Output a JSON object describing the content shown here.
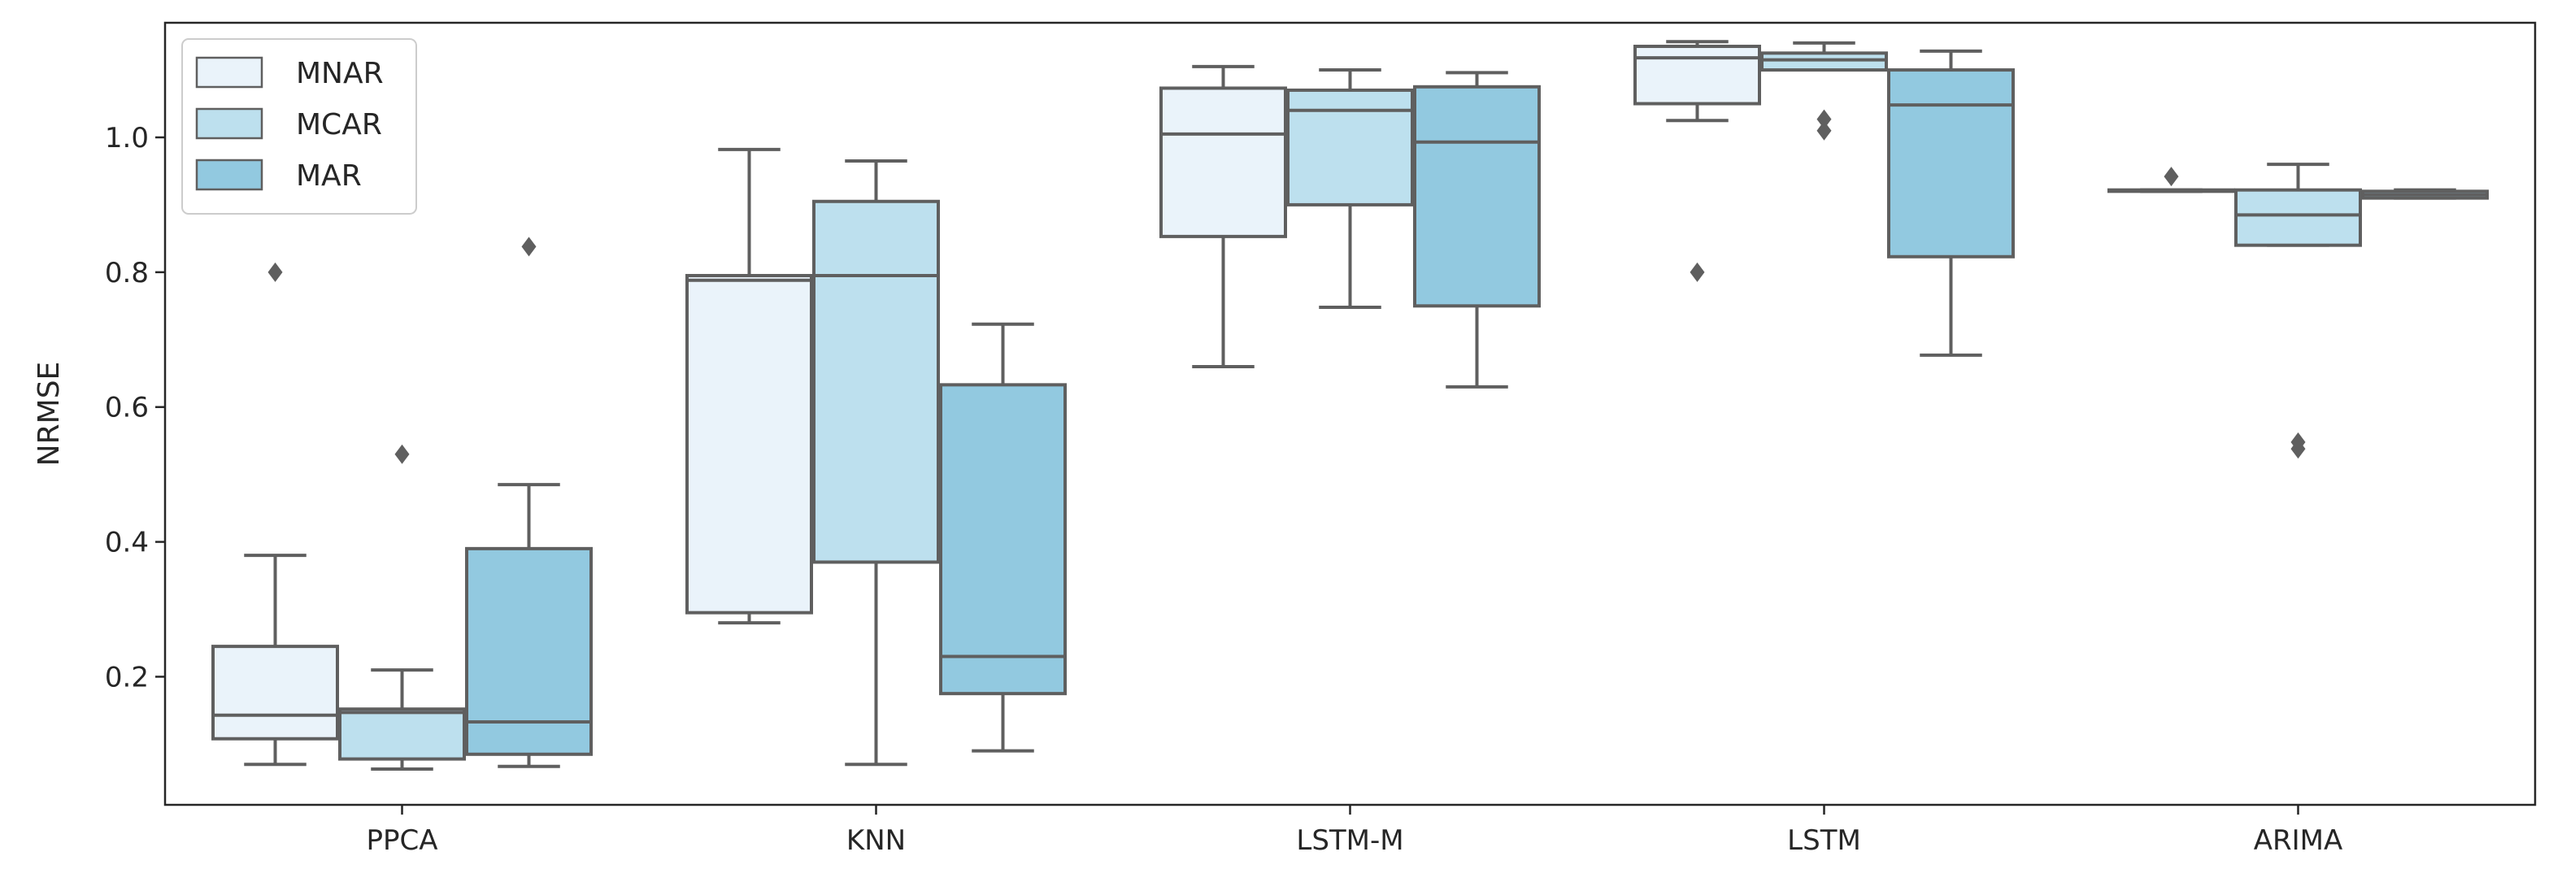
{
  "chart_data": {
    "type": "box",
    "title": "",
    "xlabel": "",
    "ylabel": "NRMSE",
    "ylim": [
      0.01,
      1.17
    ],
    "yticks": [
      0.2,
      0.4,
      0.6,
      0.8,
      1.0
    ],
    "ytick_labels": [
      "0.2",
      "0.4",
      "0.6",
      "0.8",
      "1.0"
    ],
    "categories": [
      "PPCA",
      "KNN",
      "LSTM-M",
      "LSTM",
      "ARIMA"
    ],
    "grid": false,
    "legend_position": "top-left",
    "series": [
      {
        "name": "MNAR",
        "color": "#eaf3fa",
        "boxes": [
          {
            "whislo": 0.07,
            "q1": 0.108,
            "med": 0.143,
            "q3": 0.245,
            "whishi": 0.38,
            "fliers": [
              0.8
            ]
          },
          {
            "whislo": 0.28,
            "q1": 0.295,
            "med": 0.788,
            "q3": 0.795,
            "whishi": 0.982,
            "fliers": []
          },
          {
            "whislo": 0.66,
            "q1": 0.853,
            "med": 1.005,
            "q3": 1.073,
            "whishi": 1.105,
            "fliers": []
          },
          {
            "whislo": 1.025,
            "q1": 1.05,
            "med": 1.118,
            "q3": 1.135,
            "whishi": 1.142,
            "fliers": [
              0.8
            ]
          },
          {
            "whislo": 0.92,
            "q1": 0.92,
            "med": 0.921,
            "q3": 0.922,
            "whishi": 0.922,
            "fliers": [
              0.942
            ]
          }
        ]
      },
      {
        "name": "MCAR",
        "color": "#bde0ee",
        "boxes": [
          {
            "whislo": 0.063,
            "q1": 0.078,
            "med": 0.147,
            "q3": 0.152,
            "whishi": 0.21,
            "fliers": [
              0.53
            ]
          },
          {
            "whislo": 0.07,
            "q1": 0.37,
            "med": 0.795,
            "q3": 0.905,
            "whishi": 0.965,
            "fliers": []
          },
          {
            "whislo": 0.748,
            "q1": 0.9,
            "med": 1.04,
            "q3": 1.07,
            "whishi": 1.1,
            "fliers": []
          },
          {
            "whislo": 1.1,
            "q1": 1.1,
            "med": 1.115,
            "q3": 1.125,
            "whishi": 1.14,
            "fliers": [
              1.01,
              1.027
            ]
          },
          {
            "whislo": 0.84,
            "q1": 0.84,
            "med": 0.885,
            "q3": 0.922,
            "whishi": 0.96,
            "fliers": [
              0.538,
              0.548
            ]
          }
        ]
      },
      {
        "name": "MAR",
        "color": "#92c9e0",
        "boxes": [
          {
            "whislo": 0.067,
            "q1": 0.085,
            "med": 0.133,
            "q3": 0.39,
            "whishi": 0.485,
            "fliers": [
              0.838
            ]
          },
          {
            "whislo": 0.09,
            "q1": 0.175,
            "med": 0.23,
            "q3": 0.633,
            "whishi": 0.723,
            "fliers": []
          },
          {
            "whislo": 0.63,
            "q1": 0.75,
            "med": 0.993,
            "q3": 1.075,
            "whishi": 1.096,
            "fliers": []
          },
          {
            "whislo": 0.677,
            "q1": 0.823,
            "med": 1.048,
            "q3": 1.1,
            "whishi": 1.128,
            "fliers": []
          },
          {
            "whislo": 0.91,
            "q1": 0.91,
            "med": 0.915,
            "q3": 0.92,
            "whishi": 0.922,
            "fliers": []
          }
        ]
      }
    ],
    "style": {
      "line_color": "#5f5f5f",
      "axis_color": "#262626",
      "legend_edge_color": "#cccccc"
    }
  }
}
